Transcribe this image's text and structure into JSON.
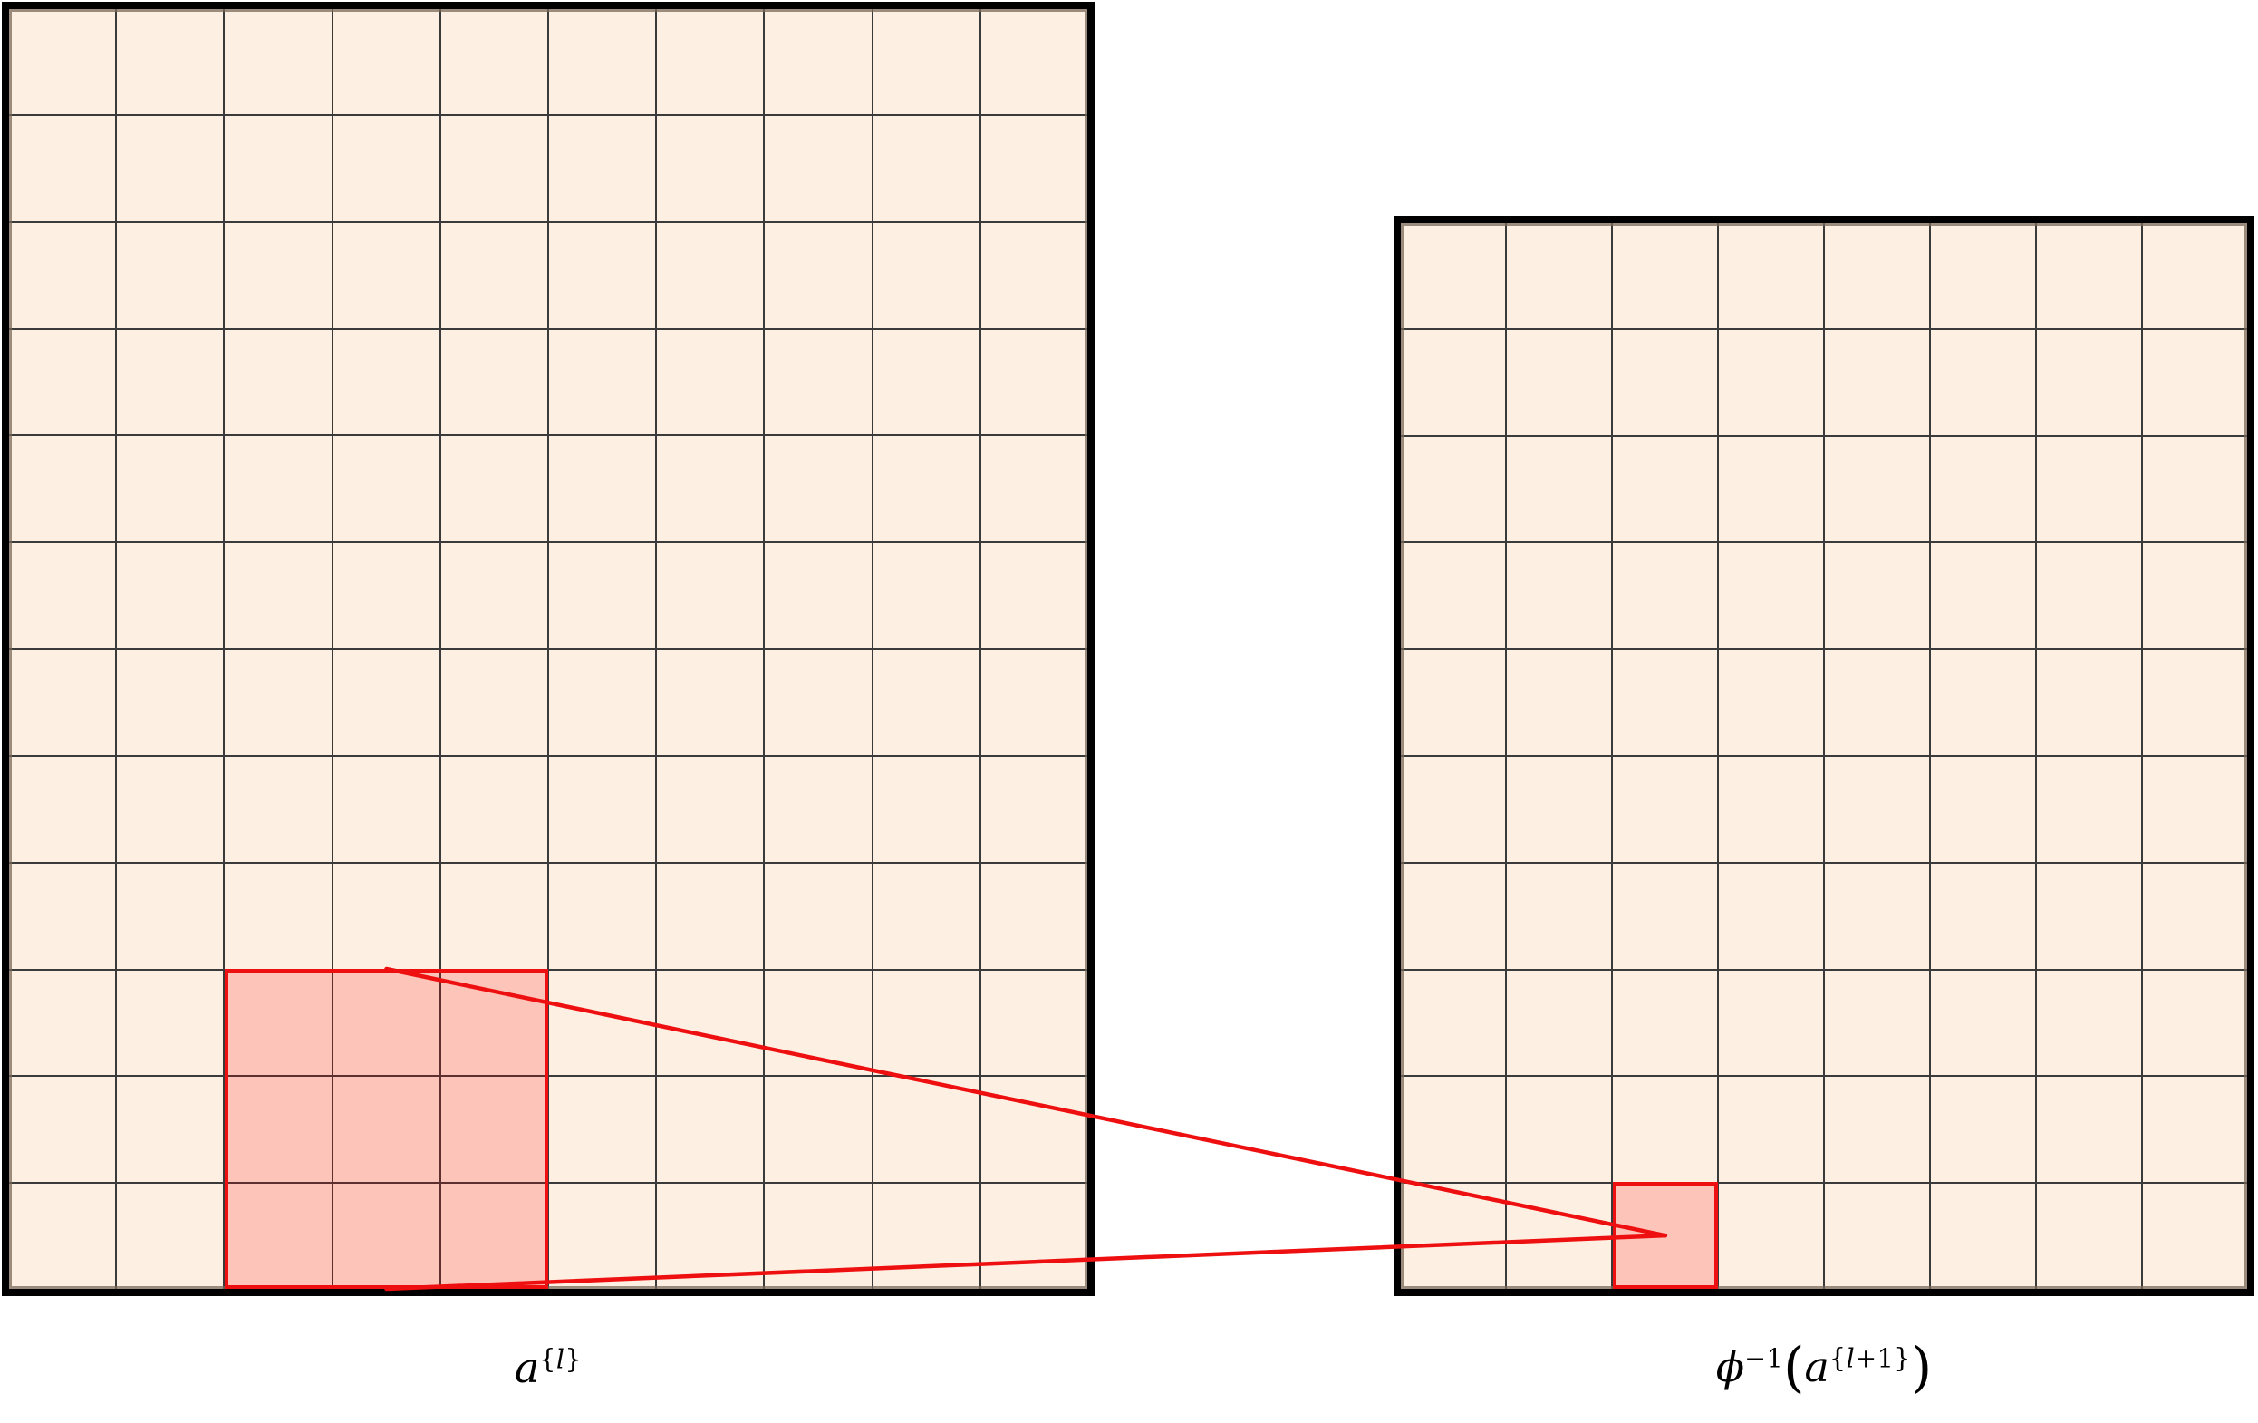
{
  "figure": {
    "type": "pooling-unpooling-diagram",
    "background": "#ffffff",
    "colors": {
      "cell_fill": "#fdf0e2",
      "grid_line": "#3a3a3a",
      "grid_border": "#000000",
      "rim": "#7a6a5a",
      "accent_red": "#ee1010",
      "highlight_fill": "rgba(255,0,0,0.18)"
    },
    "left_grid": {
      "columns": 10,
      "rows": 12,
      "highlight": {
        "col_start": 3,
        "row_start": 10,
        "col_span": 3,
        "row_span": 3
      }
    },
    "right_grid": {
      "columns": 8,
      "rows": 10,
      "highlight": {
        "col_start": 3,
        "row_start": 10,
        "col_span": 1,
        "row_span": 1
      }
    },
    "labels": {
      "left": {
        "base": "a",
        "sup_open": "{",
        "sup_var": "l",
        "sup_close": "}"
      },
      "right": {
        "phi": "ϕ",
        "exp": "−1",
        "paren_open": "(",
        "base": "a",
        "sup_open": "{",
        "sup_var": "l",
        "sup_plus": "+1",
        "sup_close": "}",
        "paren_close": ")"
      }
    }
  }
}
